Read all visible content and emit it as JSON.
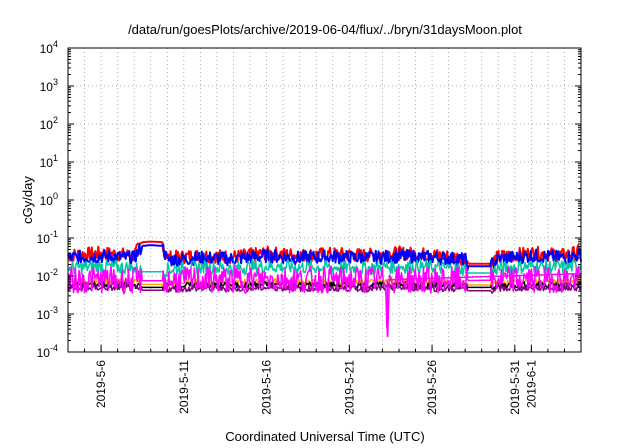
{
  "chart_data": {
    "type": "line",
    "title": "/data/run/goesPlots/archive/2019-06-04/flux/../bryn/31daysMoon.plot",
    "xlabel": "Coordinated Universal Time (UTC)",
    "ylabel": "cGy/day",
    "yscale": "log",
    "ylim": [
      0.0001,
      10000
    ],
    "xlim": [
      "2019-05-04",
      "2019-06-04"
    ],
    "grid": true,
    "yticks": [
      {
        "base": "10",
        "exp": "-4",
        "value": 0.0001
      },
      {
        "base": "10",
        "exp": "-3",
        "value": 0.001
      },
      {
        "base": "10",
        "exp": "-2",
        "value": 0.01
      },
      {
        "base": "10",
        "exp": "-1",
        "value": 0.1
      },
      {
        "base": "10",
        "exp": "0",
        "value": 1
      },
      {
        "base": "10",
        "exp": "1",
        "value": 10
      },
      {
        "base": "10",
        "exp": "2",
        "value": 100
      },
      {
        "base": "10",
        "exp": "3",
        "value": 1000
      },
      {
        "base": "10",
        "exp": "4",
        "value": 10000
      }
    ],
    "xticks": [
      {
        "label": "2019-5-6",
        "date": "2019-05-06"
      },
      {
        "label": "2019-5-11",
        "date": "2019-05-11"
      },
      {
        "label": "2019-5-16",
        "date": "2019-05-16"
      },
      {
        "label": "2019-5-21",
        "date": "2019-05-21"
      },
      {
        "label": "2019-5-26",
        "date": "2019-05-26"
      },
      {
        "label": "2019-5-31",
        "date": "2019-05-31"
      },
      {
        "label": "2019-6-1",
        "date": "2019-06-01"
      }
    ],
    "series": [
      {
        "color": "#ff0000",
        "x": [
          "2019-05-04",
          "2019-05-06",
          "2019-05-08",
          "2019-05-08.5",
          "2019-05-09",
          "2019-05-09.7",
          "2019-05-10",
          "2019-05-12",
          "2019-05-14",
          "2019-05-16",
          "2019-05-18",
          "2019-05-20",
          "2019-05-22",
          "2019-05-24",
          "2019-05-26",
          "2019-05-28",
          "2019-05-28.2",
          "2019-05-29.5",
          "2019-05-30",
          "2019-06-01",
          "2019-06-03",
          "2019-06-04"
        ],
        "values": [
          0.035,
          0.04,
          0.035,
          0.078,
          0.08,
          0.078,
          0.03,
          0.035,
          0.032,
          0.04,
          0.035,
          0.038,
          0.035,
          0.04,
          0.036,
          0.03,
          0.021,
          0.021,
          0.032,
          0.04,
          0.035,
          0.045
        ]
      },
      {
        "color": "#0000ff",
        "x": [
          "2019-05-04",
          "2019-05-06",
          "2019-05-08",
          "2019-05-08.5",
          "2019-05-09",
          "2019-05-09.7",
          "2019-05-10",
          "2019-05-12",
          "2019-05-14",
          "2019-05-16",
          "2019-05-18",
          "2019-05-20",
          "2019-05-22",
          "2019-05-24",
          "2019-05-26",
          "2019-05-28",
          "2019-05-28.2",
          "2019-05-29.5",
          "2019-05-30",
          "2019-06-01",
          "2019-06-03",
          "2019-06-04"
        ],
        "values": [
          0.03,
          0.033,
          0.03,
          0.062,
          0.065,
          0.062,
          0.026,
          0.03,
          0.028,
          0.034,
          0.03,
          0.032,
          0.03,
          0.033,
          0.031,
          0.027,
          0.018,
          0.018,
          0.028,
          0.034,
          0.03,
          0.036
        ]
      },
      {
        "color": "#00c8a0",
        "x": [
          "2019-05-04",
          "2019-05-06",
          "2019-05-08",
          "2019-05-08.5",
          "2019-05-09",
          "2019-05-09.7",
          "2019-05-10",
          "2019-05-12",
          "2019-05-14",
          "2019-05-16",
          "2019-05-18",
          "2019-05-20",
          "2019-05-22",
          "2019-05-24",
          "2019-05-26",
          "2019-05-28",
          "2019-05-28.2",
          "2019-05-29.5",
          "2019-05-30",
          "2019-06-01",
          "2019-06-03",
          "2019-06-04"
        ],
        "values": [
          0.016,
          0.018,
          0.016,
          0.013,
          0.013,
          0.013,
          0.015,
          0.017,
          0.016,
          0.018,
          0.017,
          0.017,
          0.016,
          0.018,
          0.017,
          0.015,
          0.012,
          0.012,
          0.016,
          0.018,
          0.017,
          0.019
        ]
      },
      {
        "color": "#ffa500",
        "x": [
          "2019-05-04",
          "2019-05-06",
          "2019-05-08",
          "2019-05-08.5",
          "2019-05-09",
          "2019-05-09.7",
          "2019-05-10",
          "2019-05-12",
          "2019-05-14",
          "2019-05-16",
          "2019-05-18",
          "2019-05-20",
          "2019-05-22",
          "2019-05-24",
          "2019-05-26",
          "2019-05-28",
          "2019-05-28.2",
          "2019-05-29.5",
          "2019-05-30",
          "2019-06-01",
          "2019-06-03",
          "2019-06-04"
        ],
        "values": [
          0.007,
          0.0075,
          0.007,
          0.006,
          0.006,
          0.006,
          0.0065,
          0.007,
          0.0068,
          0.0072,
          0.007,
          0.007,
          0.0068,
          0.0072,
          0.007,
          0.0066,
          0.0058,
          0.0058,
          0.0068,
          0.0072,
          0.007,
          0.0074
        ]
      },
      {
        "color": "#000000",
        "x": [
          "2019-05-04",
          "2019-05-06",
          "2019-05-08",
          "2019-05-08.5",
          "2019-05-09",
          "2019-05-09.7",
          "2019-05-10",
          "2019-05-12",
          "2019-05-14",
          "2019-05-16",
          "2019-05-18",
          "2019-05-20",
          "2019-05-22",
          "2019-05-24",
          "2019-05-26",
          "2019-05-28",
          "2019-05-28.2",
          "2019-05-29.5",
          "2019-05-30",
          "2019-06-01",
          "2019-06-03",
          "2019-06-04"
        ],
        "values": [
          0.0058,
          0.006,
          0.0058,
          0.005,
          0.005,
          0.005,
          0.0055,
          0.0058,
          0.0057,
          0.006,
          0.0058,
          0.0058,
          0.0057,
          0.006,
          0.0058,
          0.0055,
          0.005,
          0.005,
          0.0057,
          0.006,
          0.0058,
          0.0061
        ]
      },
      {
        "color": "#800080",
        "x": [
          "2019-05-04",
          "2019-05-06",
          "2019-05-08",
          "2019-05-08.5",
          "2019-05-09",
          "2019-05-09.7",
          "2019-05-10",
          "2019-05-12",
          "2019-05-14",
          "2019-05-16",
          "2019-05-18",
          "2019-05-20",
          "2019-05-22",
          "2019-05-24",
          "2019-05-26",
          "2019-05-28",
          "2019-05-28.2",
          "2019-05-29.5",
          "2019-05-30",
          "2019-06-01",
          "2019-06-03",
          "2019-06-04"
        ],
        "values": [
          0.0047,
          0.0049,
          0.0047,
          0.0042,
          0.0042,
          0.0042,
          0.0045,
          0.0047,
          0.0046,
          0.0049,
          0.0047,
          0.0047,
          0.0046,
          0.0049,
          0.0047,
          0.0045,
          0.0041,
          0.0041,
          0.0046,
          0.0049,
          0.0047,
          0.005
        ]
      },
      {
        "color": "#ff00ff",
        "x": [
          "2019-05-04",
          "2019-05-06",
          "2019-05-08",
          "2019-05-10",
          "2019-05-12",
          "2019-05-14",
          "2019-05-16",
          "2019-05-18",
          "2019-05-20",
          "2019-05-23.2",
          "2019-05-23.3",
          "2019-05-23.4",
          "2019-05-26",
          "2019-05-28",
          "2019-05-30",
          "2019-06-01",
          "2019-06-04"
        ],
        "values": [
          0.0075,
          0.008,
          0.0075,
          0.0075,
          0.008,
          0.0078,
          0.0082,
          0.008,
          0.0079,
          0.008,
          0.00025,
          0.008,
          0.0079,
          0.0076,
          0.0078,
          0.0082,
          0.008
        ]
      }
    ]
  }
}
